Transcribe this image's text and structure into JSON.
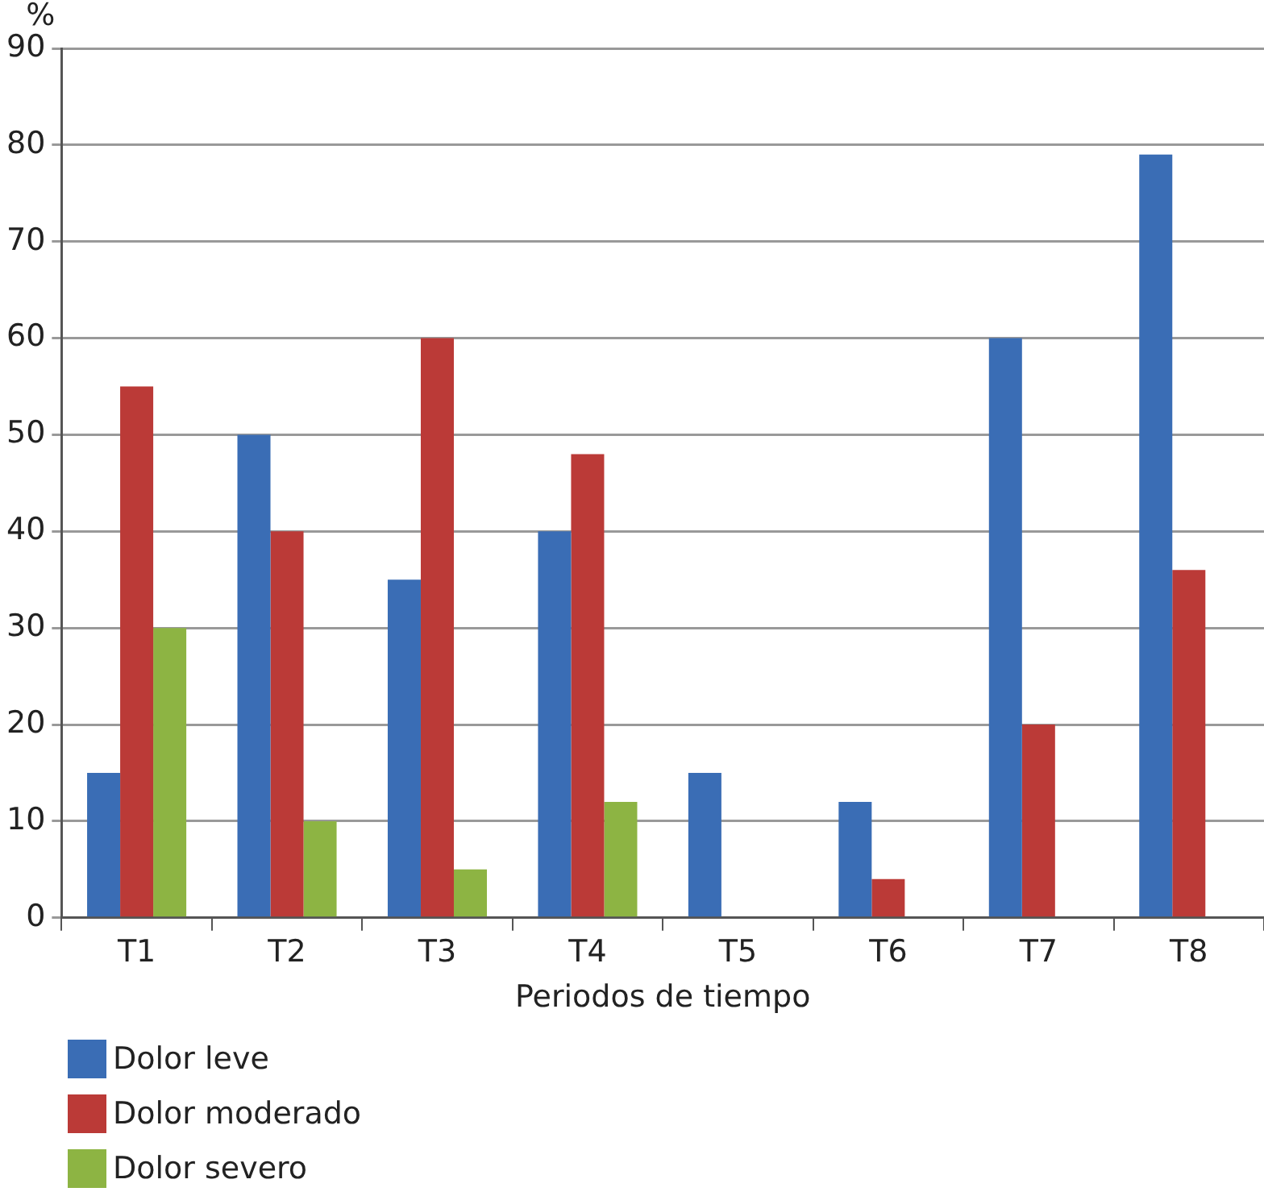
{
  "chart_data": {
    "type": "bar",
    "xlabel": "Periodos de tiempo",
    "ylabel": "%",
    "categories": [
      "T1",
      "T2",
      "T3",
      "T4",
      "T5",
      "T6",
      "T7",
      "T8"
    ],
    "series": [
      {
        "name": "Dolor leve",
        "color": "#3a6db5",
        "values": [
          15,
          50,
          35,
          40,
          15,
          12,
          60,
          79
        ]
      },
      {
        "name": "Dolor moderado",
        "color": "#bb3a37",
        "values": [
          55,
          40,
          60,
          48,
          null,
          4,
          20,
          36
        ]
      },
      {
        "name": "Dolor severo",
        "color": "#8db443",
        "values": [
          30,
          10,
          5,
          12,
          null,
          null,
          null,
          null
        ]
      }
    ],
    "ylim": [
      0,
      90
    ],
    "yticks": [
      0,
      10,
      20,
      30,
      40,
      50,
      60,
      70,
      80,
      90
    ],
    "grid": "y",
    "legend": "bottom"
  }
}
